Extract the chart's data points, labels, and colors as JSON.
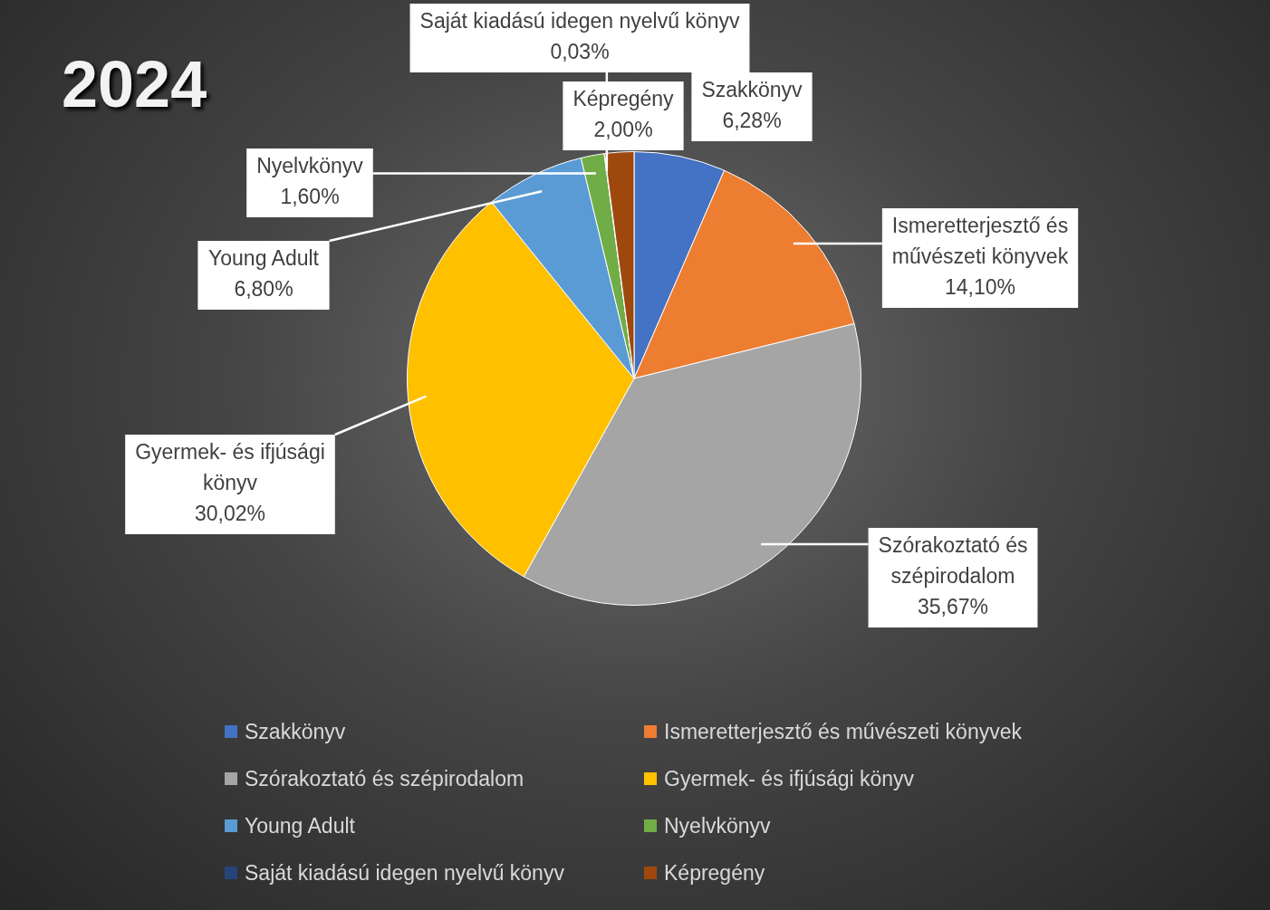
{
  "chart_data": {
    "type": "pie",
    "title": "2024",
    "categories": [
      "Szakkönyv",
      "Ismeretterjesztő és művészeti könyvek",
      "Szórakoztató és szépirodalom",
      "Gyermek- és ifjúsági könyv",
      "Young Adult",
      "Nyelvkönyv",
      "Saját kiadású idegen nyelvű könyv",
      "Képregény"
    ],
    "values": [
      6.28,
      14.1,
      35.67,
      30.02,
      6.8,
      1.6,
      0.03,
      2.0
    ],
    "colors": [
      "#4472c4",
      "#ed7d31",
      "#a5a5a5",
      "#ffc000",
      "#5b9bd5",
      "#70ad47",
      "#264478",
      "#9e480e"
    ],
    "value_labels": [
      "6,28%",
      "14,10%",
      "35,67%",
      "30,02%",
      "6,80%",
      "1,60%",
      "0,03%",
      "2,00%"
    ],
    "legend": "bottom"
  }
}
